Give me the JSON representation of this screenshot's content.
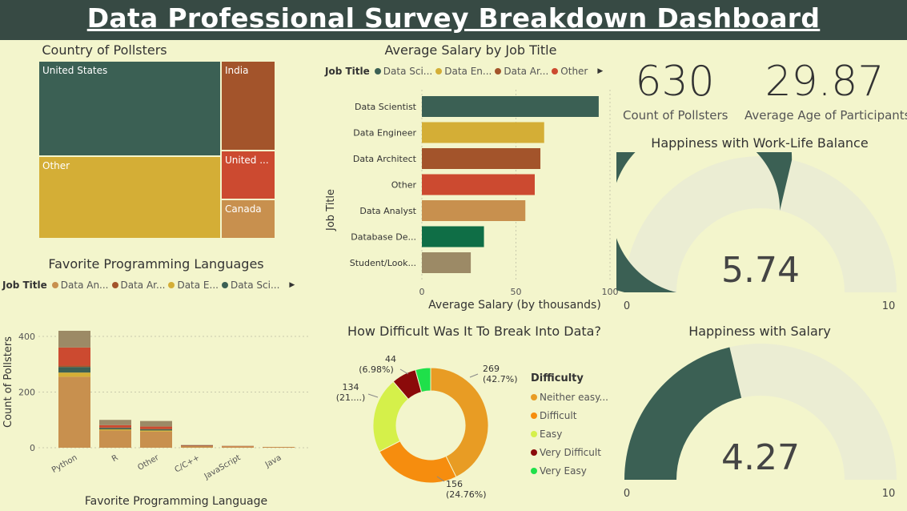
{
  "header": {
    "title": "Data Professional Survey Breakdown Dashboard"
  },
  "treemap": {
    "title": "Country of Pollsters",
    "tiles": [
      {
        "label": "United States",
        "color": "#3b6054"
      },
      {
        "label": "India",
        "color": "#a3542b"
      },
      {
        "label": "Other",
        "color": "#d4ae36"
      },
      {
        "label": "United ...",
        "color": "#cc4a30"
      },
      {
        "label": "Canada",
        "color": "#c8904e"
      }
    ]
  },
  "salary_chart": {
    "title": "Average Salary by Job Title",
    "legend_title": "Job Title",
    "legend_items": [
      {
        "label": "Data Sci...",
        "color": "#3b6054"
      },
      {
        "label": "Data En...",
        "color": "#d4ae36"
      },
      {
        "label": "Data Ar...",
        "color": "#a3542b"
      },
      {
        "label": "Other",
        "color": "#cc4a30"
      }
    ],
    "ylabel": "Job Title",
    "xlabel": "Average Salary (by thousands)",
    "x_ticks": [
      "0",
      "50",
      "100"
    ]
  },
  "languages_chart": {
    "title": "Favorite Programming Languages",
    "legend_title": "Job Title",
    "legend_items": [
      {
        "label": "Data An...",
        "color": "#c8904e"
      },
      {
        "label": "Data Ar...",
        "color": "#a3542b"
      },
      {
        "label": "Data E...",
        "color": "#d4ae36"
      },
      {
        "label": "Data Sci...",
        "color": "#3b6054"
      }
    ],
    "ylabel": "Count of Pollsters",
    "xlabel": "Favorite Programming Language",
    "y_ticks": [
      "400",
      "200",
      "0"
    ]
  },
  "kpis": {
    "count_value": "630",
    "count_label": "Count of Pollsters",
    "age_value": "29.87",
    "age_label": "Average Age of Participants"
  },
  "gauge_worklife": {
    "title": "Happiness with Work-Life Balance",
    "value": 5.74,
    "value_label": "5.74",
    "min_label": "0",
    "max_label": "10",
    "fill_color": "#3b6054",
    "track_color": "#ebedd3"
  },
  "gauge_salary": {
    "title": "Happiness with Salary",
    "value": 4.27,
    "value_label": "4.27",
    "min_label": "0",
    "max_label": "10",
    "fill_color": "#3b6054",
    "track_color": "#ebedd3"
  },
  "donut": {
    "title": "How Difficult Was It To Break Into Data?",
    "legend_title": "Difficulty",
    "legend_items": [
      {
        "label": "Neither easy...",
        "color": "#e89c24"
      },
      {
        "label": "Difficult",
        "color": "#f68d0e"
      },
      {
        "label": "Easy",
        "color": "#d5f04a"
      },
      {
        "label": "Very Difficult",
        "color": "#8b0a0a"
      },
      {
        "label": "Very Easy",
        "color": "#1fe04a"
      }
    ],
    "labels": {
      "neither_count": "269",
      "neither_pct": "(42.7%)",
      "difficult_count": "156",
      "difficult_pct": "(24.76%)",
      "easy_count": "134",
      "easy_pct": "(21....)",
      "vdiff_count": "44",
      "vdiff_pct": "(6.98%)"
    }
  },
  "chart_data": [
    {
      "type": "bar",
      "title": "Average Salary by Job Title",
      "orientation": "horizontal",
      "categories": [
        "Data Scientist",
        "Data Engineer",
        "Data Architect",
        "Other",
        "Data Analyst",
        "Database De...",
        "Student/Look..."
      ],
      "values": [
        94,
        65,
        63,
        60,
        55,
        33,
        26
      ],
      "colors": [
        "#3b6054",
        "#d4ae36",
        "#a3542b",
        "#cc4a30",
        "#c8904e",
        "#0f6e46",
        "#9c8a66"
      ],
      "xlabel": "Average Salary (by thousands)",
      "ylabel": "Job Title",
      "xlim": [
        0,
        100
      ]
    },
    {
      "type": "bar",
      "stacked": true,
      "title": "Favorite Programming Languages",
      "categories": [
        "Python",
        "R",
        "Other",
        "C/C++",
        "JavaScript",
        "Java"
      ],
      "series": [
        {
          "name": "Data An...",
          "color": "#c8904e",
          "values": [
            255,
            62,
            58,
            6,
            5,
            3
          ]
        },
        {
          "name": "Data E...",
          "color": "#d4ae36",
          "values": [
            15,
            4,
            4,
            0,
            0,
            0
          ]
        },
        {
          "name": "Data Sci...",
          "color": "#3b6054",
          "values": [
            20,
            5,
            4,
            1,
            0,
            0
          ]
        },
        {
          "name": "Data Ar...",
          "color": "#a3542b",
          "values": [
            5,
            2,
            2,
            0,
            0,
            0
          ]
        },
        {
          "name": "",
          "color": "#cc4a30",
          "values": [
            65,
            8,
            8,
            2,
            1,
            0
          ]
        },
        {
          "name": "",
          "color": "#9c8a66",
          "values": [
            60,
            19,
            20,
            1,
            1,
            0
          ]
        }
      ],
      "xlabel": "Favorite Programming Language",
      "ylabel": "Count of Pollsters",
      "ylim": [
        0,
        420
      ]
    },
    {
      "type": "pie",
      "donut": true,
      "title": "How Difficult Was It To Break Into Data?",
      "categories": [
        "Neither easy...",
        "Difficult",
        "Easy",
        "Very Difficult",
        "Very Easy"
      ],
      "values": [
        269,
        156,
        134,
        44,
        27
      ],
      "colors": [
        "#e89c24",
        "#f68d0e",
        "#d5f04a",
        "#8b0a0a",
        "#1fe04a"
      ]
    }
  ]
}
